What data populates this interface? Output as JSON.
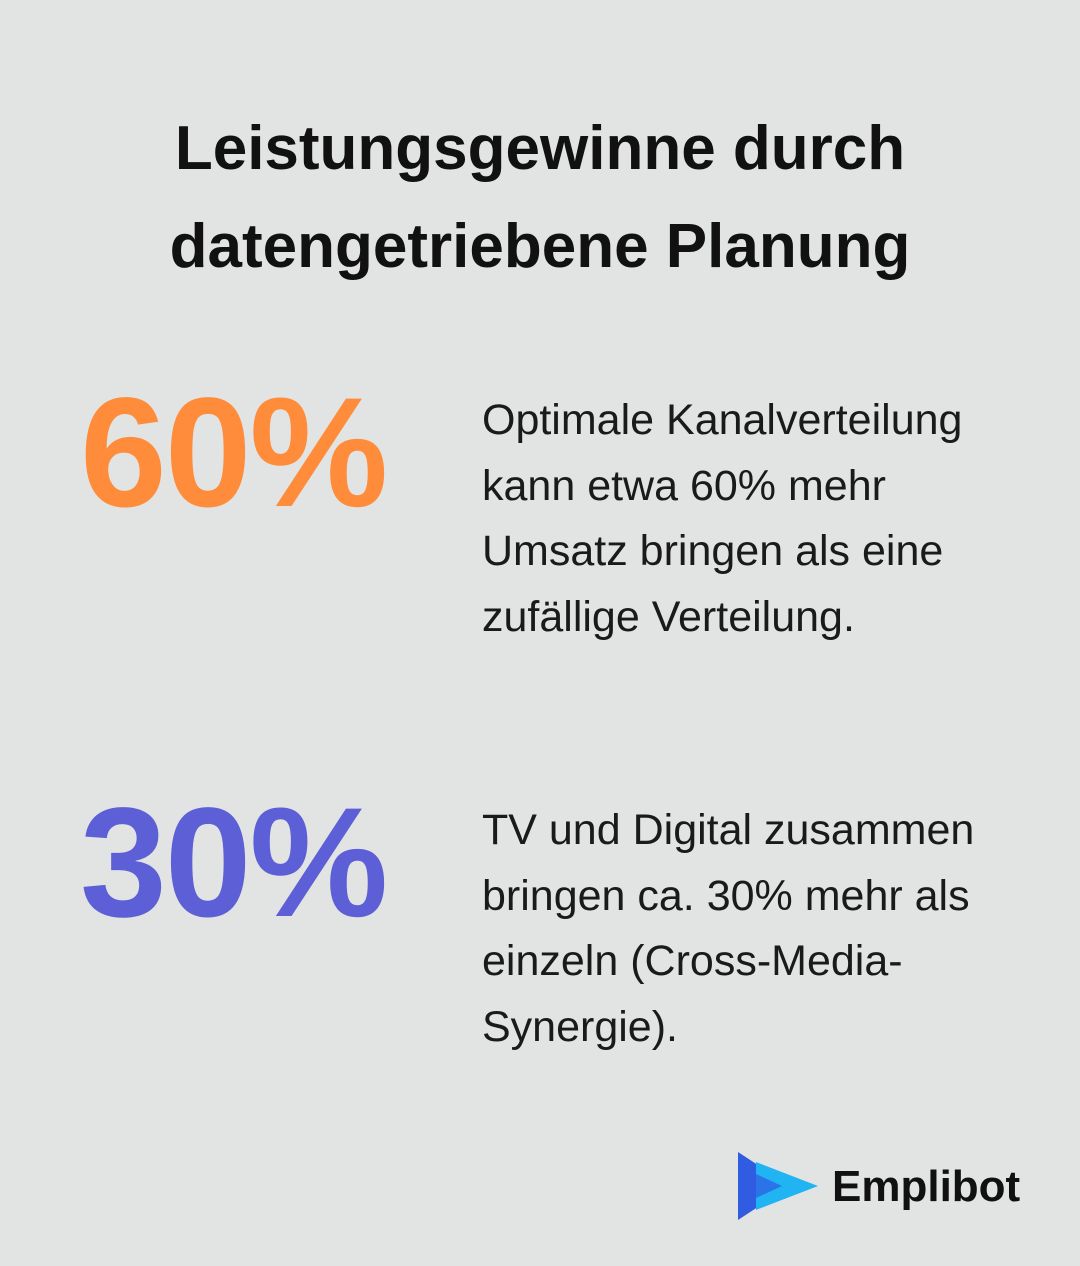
{
  "header": {
    "title": "Leistungsgewinne durch datengetriebene Planung"
  },
  "stats": [
    {
      "value": "60%",
      "color": "#ff8c3a",
      "text": "Optimale Kanalverteilung kann etwa 60% mehr Umsatz bringen als eine zufällige Verteilung."
    },
    {
      "value": "30%",
      "color": "#5c5fd6",
      "text": "TV und Digital zusammen bringen ca. 30% mehr als einzeln (Cross-Media-Synergie)."
    }
  ],
  "brand": {
    "name": "Emplibot"
  }
}
